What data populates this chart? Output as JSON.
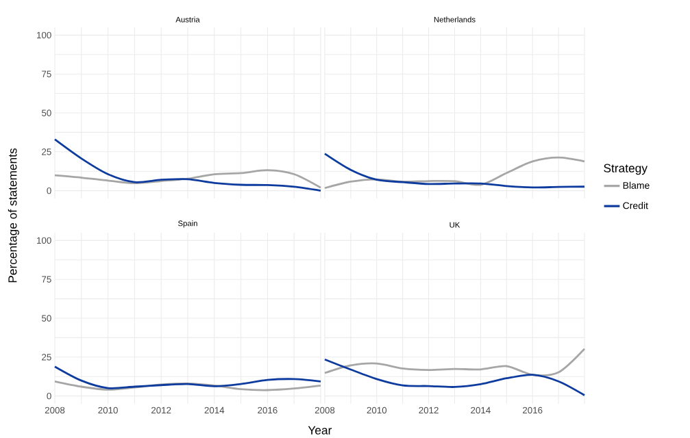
{
  "chart_data": [
    {
      "type": "line",
      "title": "Austria",
      "x": [
        2008,
        2009,
        2010,
        2011,
        2012,
        2013,
        2014,
        2015,
        2016,
        2017,
        2018
      ],
      "xlim": [
        2008,
        2018
      ],
      "ylim": [
        -5,
        105
      ],
      "xticks": [
        2008,
        {
          "value": 2009,
          "label": null
        },
        2010,
        {
          "value": 2011,
          "label": null
        },
        2012,
        {
          "value": 2013,
          "label": null
        },
        2014,
        {
          "value": 2015,
          "label": null
        },
        2016,
        {
          "value": 2017,
          "label": null
        },
        {
          "value": 2018,
          "label": null
        }
      ],
      "yticks": [
        0,
        {
          "value": 12.5,
          "label": null
        },
        25,
        {
          "value": 37.5,
          "label": null
        },
        50,
        {
          "value": 62.5,
          "label": null
        },
        75,
        {
          "value": 87.5,
          "label": null
        },
        100
      ],
      "grid": true,
      "tick_labels": "y",
      "series": [
        {
          "color": "#a6a6a6",
          "values": [
            9.9,
            8.4,
            6.5,
            4.8,
            6.2,
            7.7,
            10.6,
            11.3,
            13.2,
            10.6,
            1.9
          ]
        },
        {
          "color": "#0d3b9e",
          "values": [
            33,
            20.7,
            10.6,
            5.5,
            7,
            7.4,
            5,
            3.8,
            3.6,
            2.5,
            0
          ]
        }
      ]
    },
    {
      "type": "line",
      "title": "Netherlands",
      "x": [
        2008,
        2009,
        2010,
        2011,
        2012,
        2013,
        2014,
        2015,
        2016,
        2017,
        2018
      ],
      "xlim": [
        2008,
        2018
      ],
      "ylim": [
        -5,
        105
      ],
      "xticks": [
        2008,
        {
          "value": 2009,
          "label": null
        },
        2010,
        {
          "value": 2011,
          "label": null
        },
        2012,
        {
          "value": 2013,
          "label": null
        },
        2014,
        {
          "value": 2015,
          "label": null
        },
        2016,
        {
          "value": 2017,
          "label": null
        },
        {
          "value": 2018,
          "label": null
        }
      ],
      "yticks": [
        0,
        {
          "value": 12.5,
          "label": null
        },
        25,
        {
          "value": 37.5,
          "label": null
        },
        50,
        {
          "value": 62.5,
          "label": null
        },
        75,
        {
          "value": 87.5,
          "label": null
        },
        100
      ],
      "grid": true,
      "tick_labels": false,
      "legend": "right",
      "legend_title": "Strategy",
      "series": [
        {
          "name": "Blame",
          "color": "#a6a6a6",
          "values": [
            1.7,
            5.8,
            7.3,
            5.8,
            6.2,
            6.1,
            3.8,
            11.4,
            18.8,
            21.3,
            18.8
          ]
        },
        {
          "name": "Credit",
          "color": "#0d3b9e",
          "values": [
            23.8,
            13.4,
            7,
            5.5,
            4.3,
            4.6,
            4.6,
            3,
            2.1,
            2.4,
            2.6
          ]
        }
      ]
    },
    {
      "type": "line",
      "title": "Spain",
      "xlabel": "Year",
      "ylabel": "Percentage of statements",
      "x": [
        2008,
        2009,
        2010,
        2011,
        2012,
        2013,
        2014,
        2015,
        2016,
        2017,
        2018
      ],
      "xlim": [
        2008,
        2018
      ],
      "ylim": [
        -5,
        105
      ],
      "xticks": [
        2008,
        {
          "value": 2009,
          "label": null
        },
        2010,
        {
          "value": 2011,
          "label": null
        },
        2012,
        {
          "value": 2013,
          "label": null
        },
        2014,
        {
          "value": 2015,
          "label": null
        },
        2016,
        {
          "value": 2017,
          "label": null
        },
        {
          "value": 2018,
          "label": null
        }
      ],
      "yticks": [
        0,
        {
          "value": 12.5,
          "label": null
        },
        25,
        {
          "value": 37.5,
          "label": null
        },
        50,
        {
          "value": 62.5,
          "label": null
        },
        75,
        {
          "value": 87.5,
          "label": null
        },
        100
      ],
      "grid": true,
      "series": [
        {
          "color": "#a6a6a6",
          "values": [
            9.4,
            6,
            4.1,
            5.5,
            7.4,
            8,
            6.7,
            4.4,
            3.8,
            4.8,
            6.7
          ]
        },
        {
          "color": "#0d3b9e",
          "values": [
            18.9,
            9.9,
            5.1,
            6,
            7,
            7.7,
            6.3,
            7.7,
            10.3,
            10.9,
            9.4
          ]
        }
      ]
    },
    {
      "type": "line",
      "title": "UK",
      "x": [
        2008,
        2009,
        2010,
        2011,
        2012,
        2013,
        2014,
        2015,
        2016,
        2017,
        2018
      ],
      "xlim": [
        2008,
        2018
      ],
      "ylim": [
        -5,
        105
      ],
      "xticks": [
        2008,
        {
          "value": 2009,
          "label": null
        },
        2010,
        {
          "value": 2011,
          "label": null
        },
        2012,
        {
          "value": 2013,
          "label": null
        },
        2014,
        {
          "value": 2015,
          "label": null
        },
        2016,
        {
          "value": 2017,
          "label": null
        },
        {
          "value": 2018,
          "label": null
        }
      ],
      "yticks": [
        0,
        {
          "value": 12.5,
          "label": null
        },
        25,
        {
          "value": 37.5,
          "label": null
        },
        50,
        {
          "value": 62.5,
          "label": null
        },
        75,
        {
          "value": 87.5,
          "label": null
        },
        100
      ],
      "grid": true,
      "tick_labels": "x",
      "series": [
        {
          "color": "#a6a6a6",
          "values": [
            14.8,
            19.7,
            20.9,
            17.7,
            16.7,
            17.4,
            17.1,
            19.2,
            13.6,
            15.2,
            30.3
          ]
        },
        {
          "color": "#0d3b9e",
          "values": [
            23.5,
            17,
            10.9,
            6.8,
            6.4,
            5.8,
            7.6,
            11.4,
            13.6,
            9.4,
            0.5
          ]
        }
      ]
    }
  ]
}
